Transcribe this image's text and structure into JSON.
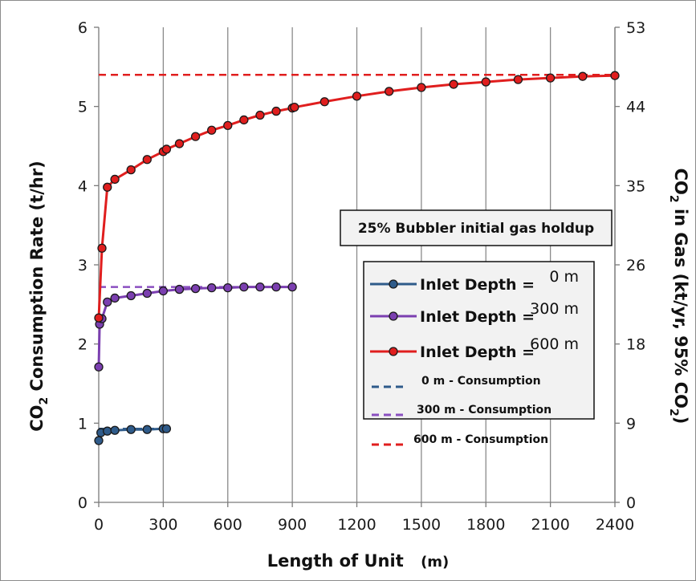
{
  "chart_data": {
    "type": "line",
    "xlabel": "Length of Unit",
    "xlabel_unit": "(m)",
    "ylabel": {
      "prefix": "CO",
      "sub": "2",
      "suffix": " Consumption Rate (t/hr)"
    },
    "y2label": {
      "prefix": "CO",
      "sub": "2",
      "mid": " in Gas  (kt/yr, 95% CO",
      "sub2": "2",
      "suffix": ")"
    },
    "xlim": [
      0,
      2400
    ],
    "ylim": [
      0,
      6
    ],
    "y2lim": [
      0,
      53
    ],
    "x_ticks": [
      "0",
      "300",
      "600",
      "900",
      "1200",
      "1500",
      "1800",
      "2100",
      "2400"
    ],
    "y_ticks": [
      "0",
      "1",
      "2",
      "3",
      "4",
      "5",
      "6"
    ],
    "y2_ticks": [
      "0",
      "9",
      "18",
      "26",
      "35",
      "44",
      "53"
    ],
    "grid": "vertical",
    "annotation": "25% Bubbler initial gas holdup",
    "series": [
      {
        "name": "Inlet Depth =",
        "value_label": "0 m",
        "color": "#2f5b8a",
        "marker_fill": "#2f5b8a",
        "x": [
          0,
          10,
          40,
          75,
          150,
          225,
          300,
          315
        ],
        "y": [
          0.78,
          0.88,
          0.9,
          0.91,
          0.92,
          0.92,
          0.93,
          0.93
        ]
      },
      {
        "name": "Inlet Depth =",
        "value_label": "300 m",
        "color": "#7b3fb0",
        "marker_fill": "#7b3fb0",
        "x": [
          0,
          4,
          15,
          40,
          75,
          150,
          225,
          300,
          375,
          450,
          525,
          600,
          675,
          750,
          825,
          900
        ],
        "y": [
          1.71,
          2.25,
          2.32,
          2.53,
          2.58,
          2.61,
          2.64,
          2.67,
          2.69,
          2.7,
          2.71,
          2.71,
          2.72,
          2.72,
          2.72,
          2.72
        ]
      },
      {
        "name": "Inlet Depth =",
        "value_label": "600 m",
        "color": "#e01e1e",
        "marker_fill": "#e01e1e",
        "x": [
          0,
          15,
          40,
          75,
          150,
          225,
          300,
          315,
          375,
          450,
          525,
          600,
          675,
          750,
          825,
          900,
          910,
          1050,
          1200,
          1350,
          1500,
          1650,
          1800,
          1950,
          2100,
          2250,
          2400
        ],
        "y": [
          2.33,
          3.21,
          3.98,
          4.08,
          4.2,
          4.33,
          4.43,
          4.46,
          4.53,
          4.62,
          4.7,
          4.76,
          4.83,
          4.89,
          4.94,
          4.98,
          4.99,
          5.06,
          5.13,
          5.19,
          5.24,
          5.28,
          5.31,
          5.34,
          5.36,
          5.38,
          5.39
        ]
      }
    ],
    "reference_lines": [
      {
        "name": "0 m - Consumption",
        "color": "#2f5b8a",
        "y": 0.93,
        "x_range": [
          0,
          315
        ]
      },
      {
        "name": "300 m - Consumption",
        "color": "#8a4fc0",
        "y": 2.72,
        "x_range": [
          0,
          900
        ]
      },
      {
        "name": "600 m - Consumption",
        "color": "#e01e1e",
        "y": 5.4,
        "x_range": [
          0,
          2400
        ]
      }
    ]
  }
}
